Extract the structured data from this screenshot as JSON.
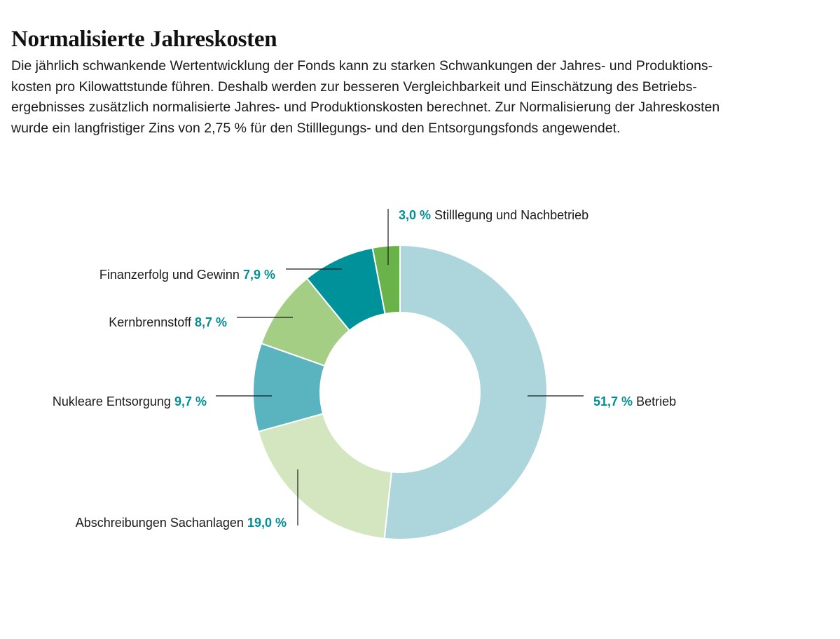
{
  "header": {
    "title": "Normalisierte Jahreskosten",
    "lines": [
      "Die jährlich schwankende Wertentwicklung der Fonds kann zu starken Schwankungen der Jahres- und Produktions-",
      "kosten pro Kilowattstunde führen. Deshalb werden zur besseren Vergleichbarkeit und Einschätzung des Betriebs-",
      "ergebnisses zusätzlich normalisierte Jahres- und Produktionskosten berechnet. Zur Normalisierung der Jahreskosten",
      "wurde ein langfristiger Zins von 2,75 % für den Stilllegungs- und den Entsorgungsfonds angewendet."
    ]
  },
  "chart_data": {
    "type": "pie",
    "style": "donut",
    "title": "",
    "slices": [
      {
        "key": "betrieb",
        "name": "Betrieb",
        "value": 51.7,
        "pct_label": "51,7 %",
        "color": "#acd6db",
        "label_order": "pct-first"
      },
      {
        "key": "abschreibungen",
        "name": "Abschreibungen Sachanlagen",
        "value": 19.0,
        "pct_label": "19,0 %",
        "color": "#d3e6c0",
        "label_order": "name-first"
      },
      {
        "key": "entsorgung",
        "name": "Nukleare Entsorgung",
        "value": 9.7,
        "pct_label": "9,7 %",
        "color": "#5ab4c0",
        "label_order": "name-first"
      },
      {
        "key": "kernbrennstoff",
        "name": "Kernbrennstoff",
        "value": 8.7,
        "pct_label": "8,7 %",
        "color": "#a5ce85",
        "label_order": "name-first"
      },
      {
        "key": "finanzerfolg",
        "name": "Finanzerfolg und Gewinn",
        "value": 7.9,
        "pct_label": "7,9 %",
        "color": "#00929b",
        "label_order": "name-first"
      },
      {
        "key": "stilllegung",
        "name": "Stilllegung und Nachbetrieb",
        "value": 3.0,
        "pct_label": "3,0 %",
        "color": "#6ab24a",
        "label_order": "pct-first"
      }
    ],
    "colors": {
      "percent_text": "#008f96",
      "leader_line": "#1a1a1a"
    }
  }
}
